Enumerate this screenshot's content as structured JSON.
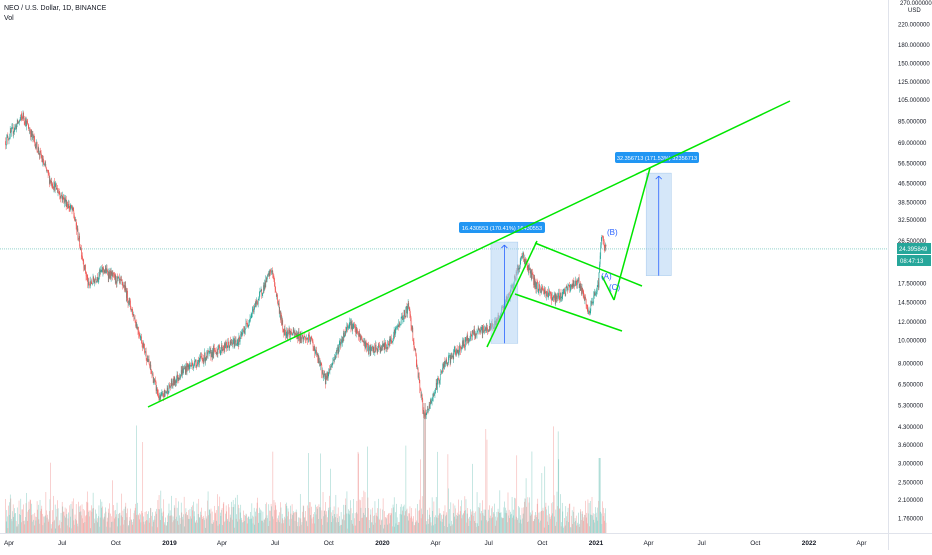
{
  "header": {
    "symbol_line": "NEO / U.S. Dollar, 1D, BINANCE",
    "vol_label": "Vol"
  },
  "axis": {
    "currency": "USD",
    "ylim": [
      1.5,
      270
    ],
    "scale": "log"
  },
  "price_ticks": [
    "270.000000",
    "220.000000",
    "180.000000",
    "150.000000",
    "125.000000",
    "105.000000",
    "85.000000",
    "69.000000",
    "56.500000",
    "46.500000",
    "38.500000",
    "32.500000",
    "26.500000",
    "17.500000",
    "14.500000",
    "12.000000",
    "10.000000",
    "8.000000",
    "6.500000",
    "5.300000",
    "4.300000",
    "3.600000",
    "3.000000",
    "2.500000",
    "2.100000",
    "1.760000"
  ],
  "current": {
    "price": "24.395849",
    "countdown": "08:47:13",
    "color": "#26a69a"
  },
  "time_ticks": [
    "Apr",
    "Jul",
    "Oct",
    "2019",
    "Apr",
    "Jul",
    "Oct",
    "2020",
    "Apr",
    "Jul",
    "Oct",
    "2021",
    "Apr",
    "Jul",
    "Oct",
    "2022",
    "Apr"
  ],
  "annotations": {
    "range1": "16.430553 (170.41%) 16430553",
    "range2": "32.356713 (171.53%) 32356713",
    "wave_b": "(B)",
    "wave_a": "(A)",
    "wave_c": "(C)"
  },
  "colors": {
    "up": "#26a69a",
    "down": "#ef5350",
    "trend": "#00e600",
    "box": "#b3d4f5",
    "label": "#2196f3"
  },
  "chart_data": {
    "type": "candlestick",
    "series_anchor_prices": [
      [
        "2018-03-26",
        70
      ],
      [
        "2018-04-25",
        90
      ],
      [
        "2018-05-20",
        65
      ],
      [
        "2018-06-10",
        48
      ],
      [
        "2018-07-20",
        35
      ],
      [
        "2018-08-15",
        17
      ],
      [
        "2018-09-10",
        20
      ],
      [
        "2018-10-15",
        17
      ],
      [
        "2018-11-20",
        9
      ],
      [
        "2018-12-15",
        5.6
      ],
      [
        "2019-01-25",
        7.5
      ],
      [
        "2019-03-20",
        9.0
      ],
      [
        "2019-05-01",
        10
      ],
      [
        "2019-06-25",
        20
      ],
      [
        "2019-07-15",
        11
      ],
      [
        "2019-09-01",
        10
      ],
      [
        "2019-09-25",
        6.8
      ],
      [
        "2019-11-05",
        12
      ],
      [
        "2019-12-10",
        9.0
      ],
      [
        "2020-01-10",
        9.5
      ],
      [
        "2020-02-15",
        14.0
      ],
      [
        "2020-03-13",
        4.6
      ],
      [
        "2020-04-15",
        7.8
      ],
      [
        "2020-06-01",
        10.5
      ],
      [
        "2020-07-10",
        11.5
      ],
      [
        "2020-08-05",
        15.5
      ],
      [
        "2020-08-28",
        23
      ],
      [
        "2020-09-20",
        17
      ],
      [
        "2020-10-25",
        15
      ],
      [
        "2020-12-01",
        18
      ],
      [
        "2020-12-20",
        13
      ],
      [
        "2021-01-05",
        17.5
      ],
      [
        "2021-01-10",
        27
      ],
      [
        "2021-01-18",
        24.4
      ]
    ],
    "measurements": [
      {
        "from": 9.7,
        "to": 26.1,
        "change": 16.430553,
        "percent": 170.41
      },
      {
        "from": 18.8,
        "to": 51.2,
        "change": 32.356713,
        "percent": 171.53
      }
    ]
  }
}
